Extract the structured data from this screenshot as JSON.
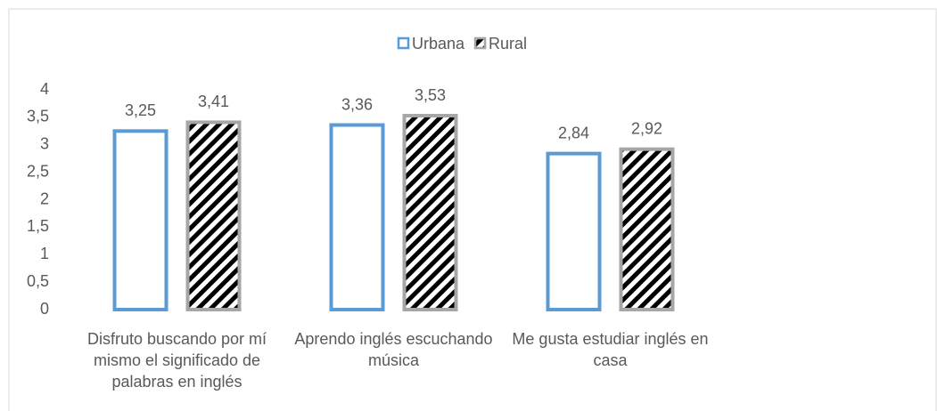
{
  "chart_data": {
    "type": "bar",
    "categories": [
      "Disfruto buscando por mí mismo el significado de palabras en inglés",
      "Aprendo inglés escuchando música",
      "Me gusta estudiar inglés en casa"
    ],
    "series": [
      {
        "name": "Urbana",
        "color": "#5b9bd5",
        "values": [
          3.25,
          3.36,
          2.84
        ],
        "value_labels": [
          "3,25",
          "3,36",
          "2,84"
        ]
      },
      {
        "name": "Rural",
        "color": "#a6a6a6",
        "pattern": "diagonal-stripes",
        "values": [
          3.41,
          3.53,
          2.92
        ],
        "value_labels": [
          "3,41",
          "3,53",
          "2,92"
        ]
      }
    ],
    "ylim": [
      0,
      4
    ],
    "yticks": [
      0,
      {
        "value": 0.5,
        "label": "0,5"
      },
      1,
      {
        "value": 1.5,
        "label": "1,5"
      },
      2,
      {
        "value": 2.5,
        "label": "2,5"
      },
      3,
      {
        "value": 3.5,
        "label": "3,5"
      },
      4
    ],
    "grid": false,
    "legend": "top"
  }
}
